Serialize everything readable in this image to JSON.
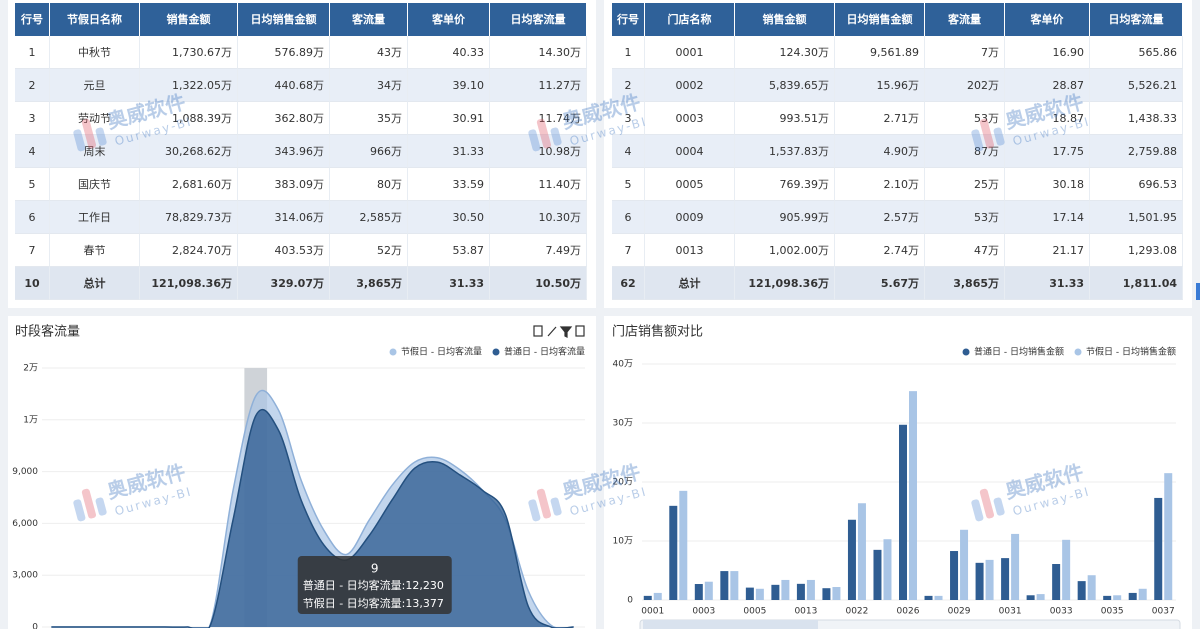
{
  "tables": [
    {
      "columns": [
        "行号",
        "节假日名称",
        "销售金额",
        "日均销售金额",
        "客流量",
        "客单价",
        "日均客流量"
      ],
      "rows": [
        [
          "1",
          "中秋节",
          "1,730.67万",
          "576.89万",
          "43万",
          "40.33",
          "14.30万"
        ],
        [
          "2",
          "元旦",
          "1,322.05万",
          "440.68万",
          "34万",
          "39.10",
          "11.27万"
        ],
        [
          "3",
          "劳动节",
          "1,088.39万",
          "362.80万",
          "35万",
          "30.91",
          "11.74万"
        ],
        [
          "4",
          "周末",
          "30,268.62万",
          "343.96万",
          "966万",
          "31.33",
          "10.98万"
        ],
        [
          "5",
          "国庆节",
          "2,681.60万",
          "383.09万",
          "80万",
          "33.59",
          "11.40万"
        ],
        [
          "6",
          "工作日",
          "78,829.73万",
          "314.06万",
          "2,585万",
          "30.50",
          "10.30万"
        ],
        [
          "7",
          "春节",
          "2,824.70万",
          "403.53万",
          "52万",
          "53.87",
          "7.49万"
        ]
      ],
      "total": [
        "10",
        "总计",
        "121,098.36万",
        "329.07万",
        "3,865万",
        "31.33",
        "10.50万"
      ]
    },
    {
      "columns": [
        "行号",
        "门店名称",
        "销售金额",
        "日均销售金额",
        "客流量",
        "客单价",
        "日均客流量"
      ],
      "rows": [
        [
          "1",
          "0001",
          "124.30万",
          "9,561.89",
          "7万",
          "16.90",
          "565.86"
        ],
        [
          "2",
          "0002",
          "5,839.65万",
          "15.96万",
          "202万",
          "28.87",
          "5,526.21"
        ],
        [
          "3",
          "0003",
          "993.51万",
          "2.71万",
          "53万",
          "18.87",
          "1,438.33"
        ],
        [
          "4",
          "0004",
          "1,537.83万",
          "4.90万",
          "87万",
          "17.75",
          "2,759.88"
        ],
        [
          "5",
          "0005",
          "769.39万",
          "2.10万",
          "25万",
          "30.18",
          "696.53"
        ],
        [
          "6",
          "0009",
          "905.99万",
          "2.57万",
          "53万",
          "17.14",
          "1,501.95"
        ],
        [
          "7",
          "0013",
          "1,002.00万",
          "2.74万",
          "47万",
          "21.17",
          "1,293.08"
        ]
      ],
      "total": [
        "62",
        "总计",
        "121,098.36万",
        "5.67万",
        "3,865万",
        "31.33",
        "1,811.04"
      ]
    }
  ],
  "chart_data": [
    {
      "type": "area",
      "title": "时段客流量",
      "categories": [
        null,
        null,
        null,
        null,
        null,
        null,
        null,
        null,
        null,
        "9",
        null,
        null,
        null,
        null,
        null,
        null,
        null,
        null,
        null,
        null,
        null,
        null,
        null,
        null
      ],
      "series": [
        {
          "name": "节假日 - 日均客流量",
          "color": "#a9c5e6",
          "values": [
            0,
            0,
            0,
            0,
            0,
            0,
            0,
            150,
            7900,
            13377,
            12570,
            8500,
            5600,
            4200,
            6200,
            8200,
            9550,
            9800,
            9100,
            7900,
            6200,
            2100,
            100,
            0
          ]
        },
        {
          "name": "普通日 - 日均客流量",
          "color": "#2f5d92",
          "values": [
            0,
            0,
            0,
            0,
            0,
            0,
            0,
            100,
            6200,
            12230,
            11400,
            7350,
            4750,
            3880,
            5300,
            7350,
            9200,
            9550,
            8800,
            7900,
            6500,
            1200,
            0,
            0
          ]
        }
      ],
      "ylim": [
        0,
        15000
      ],
      "yticks": [
        0,
        {
          "value": 3000,
          "label": "3,000"
        },
        {
          "value": 6000,
          "label": "6,000"
        },
        {
          "value": 9000,
          "label": "9,000"
        },
        {
          "value": 12000,
          "label": "1万"
        },
        {
          "value": 15000,
          "label": "2万"
        }
      ],
      "grid": true,
      "legend": "top-right",
      "tooltip": {
        "lines": [
          "普通日 - 日均客流量:12,230",
          "节假日 - 日均客流量:13,377"
        ]
      }
    },
    {
      "type": "bar",
      "title": "门店销售额对比",
      "categories": [
        "0001",
        null,
        "0003",
        null,
        "0005",
        null,
        "0013",
        null,
        "0022",
        null,
        "0026",
        null,
        "0029",
        null,
        "0031",
        null,
        "0033",
        null,
        "0035",
        null,
        "0037"
      ],
      "series": [
        {
          "name": "普通日 - 日均销售金额",
          "color": "#2f5d92",
          "values": [
            0.7,
            15.96,
            2.71,
            4.9,
            2.1,
            2.57,
            2.74,
            2.0,
            13.6,
            8.5,
            29.7,
            0.7,
            8.3,
            6.3,
            7.1,
            0.8,
            6.1,
            3.2,
            0.7,
            1.2,
            17.3
          ]
        },
        {
          "name": "节假日 - 日均销售金额",
          "color": "#a9c5e6",
          "values": [
            1.2,
            18.5,
            3.1,
            4.9,
            1.9,
            3.4,
            3.4,
            2.2,
            16.4,
            10.3,
            35.4,
            0.7,
            11.9,
            6.8,
            11.2,
            1.0,
            10.2,
            4.2,
            0.8,
            1.9,
            21.5
          ]
        }
      ],
      "ylim": [
        0,
        40
      ],
      "yticks": [
        0,
        {
          "value": 10,
          "label": "10万"
        },
        {
          "value": 20,
          "label": "20万"
        },
        {
          "value": 30,
          "label": "30万"
        },
        {
          "value": 40,
          "label": "40万"
        }
      ],
      "grid": true,
      "legend": "top-right"
    }
  ],
  "watermark": {
    "name": "奥威软件",
    "sub": "Ourway-BI"
  }
}
